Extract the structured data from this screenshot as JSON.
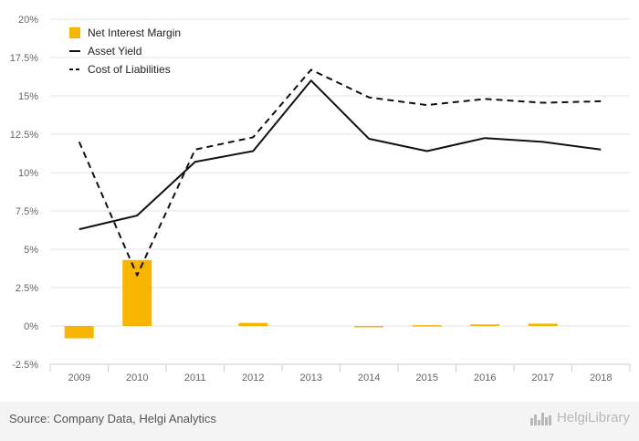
{
  "chart_data": {
    "type": "bar",
    "categories": [
      "2009",
      "2010",
      "2011",
      "2012",
      "2013",
      "2014",
      "2015",
      "2016",
      "2017",
      "2018"
    ],
    "series": [
      {
        "name": "Net Interest Margin",
        "type": "bar",
        "color": "#f7b400",
        "values": [
          -0.8,
          4.3,
          0,
          0.2,
          0,
          -0.05,
          0.05,
          0.1,
          0.15,
          0
        ]
      },
      {
        "name": "Asset Yield",
        "type": "line",
        "dash": "solid",
        "color": "#111111",
        "values": [
          6.3,
          7.2,
          10.7,
          11.4,
          16.0,
          12.2,
          11.4,
          12.25,
          12.0,
          11.5
        ]
      },
      {
        "name": "Cost of Liabilities",
        "type": "line",
        "dash": "dashed",
        "color": "#111111",
        "values": [
          12.0,
          3.3,
          11.5,
          12.3,
          16.7,
          14.9,
          14.4,
          14.8,
          14.55,
          14.65
        ]
      }
    ],
    "yticks": [
      "20%",
      "17.5%",
      "15%",
      "12.5%",
      "10%",
      "7.5%",
      "5%",
      "2.5%",
      "0%",
      "-2.5%"
    ],
    "ylim": [
      -2.5,
      20
    ],
    "title": "",
    "xlabel": "",
    "ylabel": "",
    "grid": true,
    "legend_position": "top-left"
  },
  "legend": {
    "items": [
      "Net Interest Margin",
      "Asset Yield",
      "Cost of Liabilities"
    ]
  },
  "footer": {
    "source": "Source: Company Data, Helgi Analytics",
    "logo_text": "HelgiLibrary",
    "logo_icon": "city-skyline-icon"
  }
}
